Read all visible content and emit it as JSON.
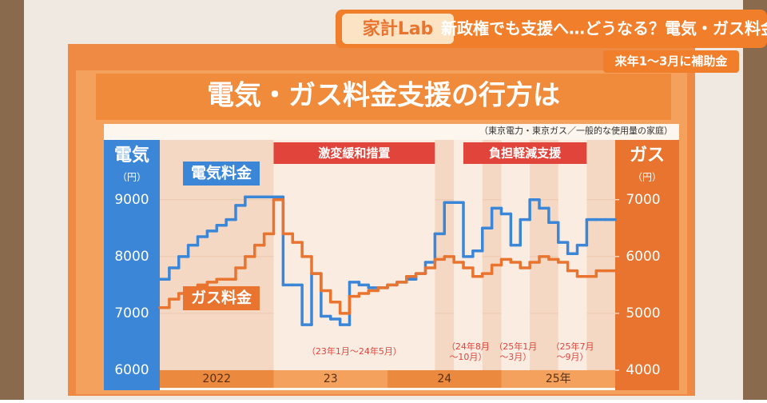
{
  "banner": {
    "logo": "家計Lab",
    "headline": "新政権でも支援へ…どうなる？電気・ガス料金",
    "subhead": "来年1～3月に補助金"
  },
  "chart_data": {
    "type": "line",
    "title": "電気・ガス料金支援の行方は",
    "source": "（東京電力・東京ガス／一般的な使用量の家庭）",
    "y_label": "電気",
    "y_unit": "（円）",
    "y2_label": "ガス",
    "y2_unit": "（円）",
    "categories": [
      null,
      null,
      null,
      null,
      null,
      null,
      null,
      null,
      null,
      null,
      null,
      null,
      null,
      null,
      null,
      null,
      null,
      null,
      null,
      null,
      null,
      null,
      null,
      null,
      null,
      null,
      null,
      null,
      null,
      null,
      null,
      null,
      null,
      null,
      null,
      null,
      null,
      null,
      null,
      null,
      null,
      null,
      null,
      null,
      null,
      null,
      null,
      null
    ],
    "year_labels": [
      "2022",
      "23",
      "24",
      "25年"
    ],
    "series": [
      {
        "name": "電気料金",
        "color": "#3b86d6",
        "values": [
          7600,
          7800,
          8000,
          8200,
          8350,
          8450,
          8550,
          8650,
          8900,
          9050,
          9050,
          9050,
          9050,
          7500,
          7500,
          6800,
          7700,
          6950,
          6900,
          6800,
          7550,
          7500,
          7450,
          7450,
          7500,
          7550,
          7600,
          7700,
          7900,
          8400,
          8950,
          8950,
          8000,
          8100,
          8500,
          8850,
          8750,
          8200,
          8650,
          9000,
          8850,
          8600,
          8250,
          8050,
          8200,
          8650,
          8650,
          8650
        ]
      },
      {
        "name": "ガス料金",
        "color": "#e8742f",
        "axis": "y2",
        "values": [
          5100,
          5250,
          5350,
          5450,
          5500,
          5550,
          5600,
          5600,
          5800,
          6000,
          6200,
          6400,
          7000,
          6400,
          6250,
          6000,
          5700,
          5400,
          5200,
          5000,
          5300,
          5350,
          5400,
          5450,
          5500,
          5550,
          5650,
          5700,
          5800,
          5950,
          6000,
          5900,
          5800,
          5650,
          5700,
          5850,
          5950,
          5900,
          5800,
          5900,
          6000,
          5950,
          5900,
          5750,
          5650,
          5650,
          5750,
          5750
        ]
      }
    ],
    "ylim": [
      6000,
      9700
    ],
    "yticks": [
      6000,
      7000,
      8000,
      9000
    ],
    "y2lim": [
      4000,
      7700
    ],
    "y2ticks": [
      4000,
      5000,
      6000,
      7000
    ],
    "programs": [
      {
        "name": "激変緩和措置",
        "periods": [
          {
            "label": [
              "（23年1月～24年5月）"
            ],
            "from": "2023-01",
            "to": "2024-05"
          }
        ]
      },
      {
        "name": "負担軽減支援",
        "periods": [
          {
            "label": [
              "（24年8月",
              "～10月）"
            ],
            "from": "2024-08",
            "to": "2024-10"
          },
          {
            "label": [
              "（25年1月",
              "～3月）"
            ],
            "from": "2025-01",
            "to": "2025-03"
          },
          {
            "label": [
              "（25年7月",
              "～9月）"
            ],
            "from": "2025-07",
            "to": "2025-09"
          }
        ]
      }
    ]
  }
}
